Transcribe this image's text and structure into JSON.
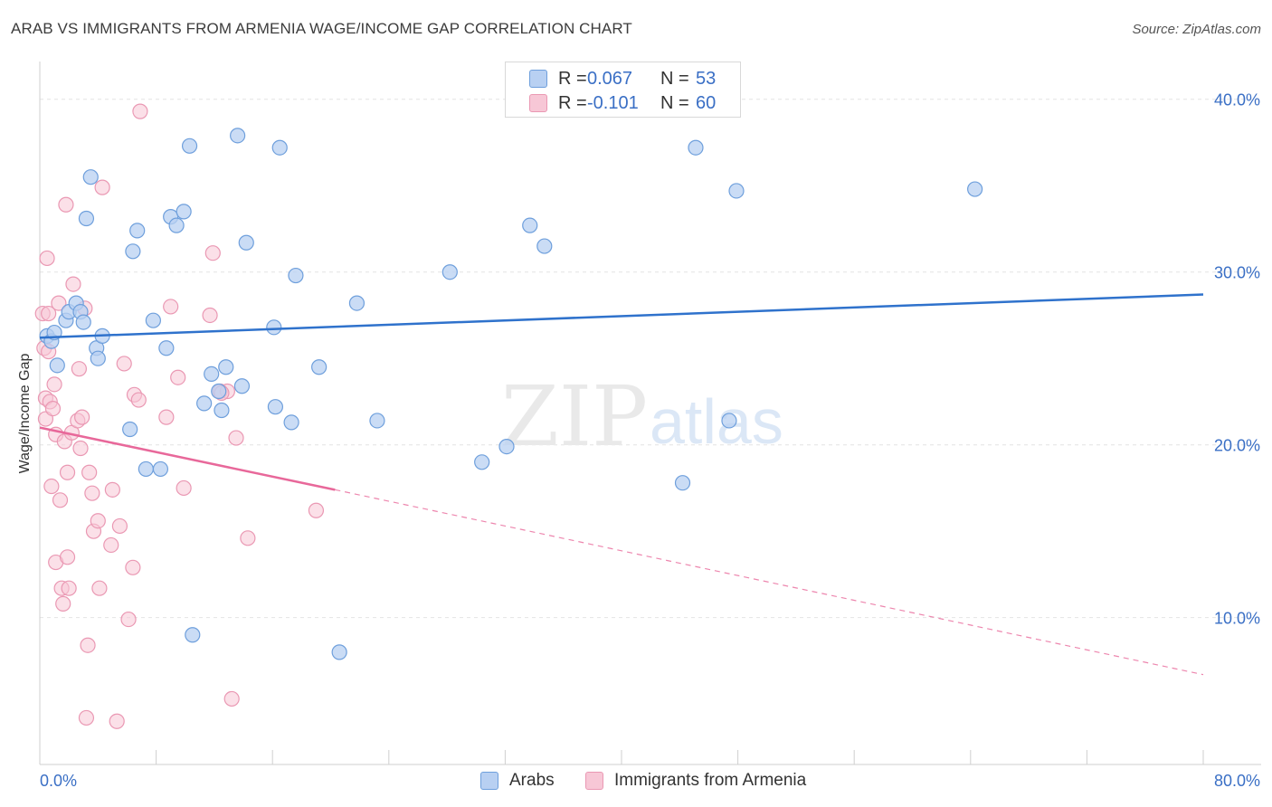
{
  "chart_data": {
    "type": "scatter",
    "title": "ARAB VS IMMIGRANTS FROM ARMENIA WAGE/INCOME GAP CORRELATION CHART",
    "source": "Source: ZipAtlas.com",
    "xlabel": "",
    "ylabel": "Wage/Income Gap",
    "xlim": [
      0,
      80
    ],
    "ylim": [
      1.5,
      42.5
    ],
    "x_tick_labels": {
      "left": "0.0%",
      "right": "80.0%"
    },
    "y_ticks": [
      {
        "value": 10,
        "label": "10.0%"
      },
      {
        "value": 20,
        "label": "20.0%"
      },
      {
        "value": 30,
        "label": "30.0%"
      },
      {
        "value": 40,
        "label": "40.0%"
      }
    ],
    "watermark": {
      "zip": "ZIP",
      "atlas": "atlas"
    },
    "legend": {
      "r_label": "R =",
      "n_label": "N =",
      "entries": [
        {
          "name": "Arabs",
          "r": "0.067",
          "n": "53"
        },
        {
          "name": "Immigrants from Armenia",
          "r": "-0.101",
          "n": "60"
        }
      ]
    },
    "colors": {
      "arabs_fill": "#b8d0f2",
      "arabs_stroke": "#6e9fdc",
      "arabs_line": "#2f72cc",
      "armenia_fill": "#f7c7d6",
      "armenia_stroke": "#ea98b3",
      "armenia_line": "#e8689a",
      "axis_text": "#3a6fc5"
    },
    "series": [
      {
        "name": "Arabs",
        "trend": {
          "x": [
            0,
            80
          ],
          "y": [
            26.2,
            28.7
          ]
        },
        "points": [
          [
            0.5,
            26.3
          ],
          [
            0.8,
            26.0
          ],
          [
            1.0,
            26.5
          ],
          [
            1.2,
            24.6
          ],
          [
            1.8,
            27.2
          ],
          [
            2.0,
            27.7
          ],
          [
            2.5,
            28.2
          ],
          [
            2.8,
            27.7
          ],
          [
            3.0,
            27.1
          ],
          [
            3.2,
            33.1
          ],
          [
            3.5,
            35.5
          ],
          [
            3.9,
            25.6
          ],
          [
            4.0,
            25.0
          ],
          [
            4.3,
            26.3
          ],
          [
            6.2,
            20.9
          ],
          [
            6.4,
            31.2
          ],
          [
            6.7,
            32.4
          ],
          [
            7.3,
            18.6
          ],
          [
            7.8,
            27.2
          ],
          [
            8.3,
            18.6
          ],
          [
            8.7,
            25.6
          ],
          [
            9.0,
            33.2
          ],
          [
            9.4,
            32.7
          ],
          [
            9.9,
            33.5
          ],
          [
            10.3,
            37.3
          ],
          [
            10.5,
            9.0
          ],
          [
            11.3,
            22.4
          ],
          [
            11.8,
            24.1
          ],
          [
            12.3,
            23.1
          ],
          [
            12.5,
            22.0
          ],
          [
            12.8,
            24.5
          ],
          [
            13.6,
            37.9
          ],
          [
            13.9,
            23.4
          ],
          [
            14.2,
            31.7
          ],
          [
            16.1,
            26.8
          ],
          [
            16.2,
            22.2
          ],
          [
            16.5,
            37.2
          ],
          [
            17.3,
            21.3
          ],
          [
            17.6,
            29.8
          ],
          [
            19.2,
            24.5
          ],
          [
            20.6,
            8.0
          ],
          [
            21.8,
            28.2
          ],
          [
            23.2,
            21.4
          ],
          [
            28.2,
            30.0
          ],
          [
            30.4,
            19.0
          ],
          [
            32.1,
            19.9
          ],
          [
            33.7,
            32.7
          ],
          [
            34.7,
            31.5
          ],
          [
            44.2,
            17.8
          ],
          [
            45.1,
            37.2
          ],
          [
            47.4,
            21.4
          ],
          [
            47.9,
            34.7
          ],
          [
            64.3,
            34.8
          ]
        ]
      },
      {
        "name": "Immigrants from Armenia",
        "trend": {
          "x": [
            0,
            20.3
          ],
          "y": [
            21.0,
            17.4
          ]
        },
        "trend_dashed": {
          "x": [
            20.3,
            80
          ],
          "y": [
            17.4,
            6.7
          ]
        },
        "points": [
          [
            0.2,
            27.6
          ],
          [
            0.3,
            25.6
          ],
          [
            0.4,
            21.5
          ],
          [
            0.4,
            22.7
          ],
          [
            0.5,
            30.8
          ],
          [
            0.6,
            27.6
          ],
          [
            0.6,
            25.4
          ],
          [
            0.7,
            22.5
          ],
          [
            0.8,
            17.6
          ],
          [
            0.9,
            22.1
          ],
          [
            1.0,
            23.5
          ],
          [
            1.1,
            13.2
          ],
          [
            1.1,
            20.6
          ],
          [
            1.3,
            28.2
          ],
          [
            1.4,
            16.8
          ],
          [
            1.5,
            11.7
          ],
          [
            1.6,
            10.8
          ],
          [
            1.7,
            20.2
          ],
          [
            1.8,
            33.9
          ],
          [
            1.9,
            13.5
          ],
          [
            1.9,
            18.4
          ],
          [
            2.0,
            11.7
          ],
          [
            2.2,
            20.7
          ],
          [
            2.3,
            29.3
          ],
          [
            2.6,
            21.4
          ],
          [
            2.7,
            24.4
          ],
          [
            2.8,
            19.8
          ],
          [
            2.9,
            21.6
          ],
          [
            3.1,
            27.9
          ],
          [
            3.2,
            4.2
          ],
          [
            3.3,
            8.4
          ],
          [
            3.4,
            18.4
          ],
          [
            3.6,
            17.2
          ],
          [
            3.7,
            15.0
          ],
          [
            4.0,
            15.6
          ],
          [
            4.1,
            11.7
          ],
          [
            4.3,
            34.9
          ],
          [
            4.9,
            14.2
          ],
          [
            5.0,
            17.4
          ],
          [
            5.3,
            4.0
          ],
          [
            5.5,
            15.3
          ],
          [
            5.8,
            24.7
          ],
          [
            6.1,
            9.9
          ],
          [
            6.4,
            12.9
          ],
          [
            6.5,
            22.9
          ],
          [
            6.8,
            22.6
          ],
          [
            6.9,
            39.3
          ],
          [
            8.7,
            21.6
          ],
          [
            9.0,
            28.0
          ],
          [
            9.5,
            23.9
          ],
          [
            9.9,
            17.5
          ],
          [
            11.7,
            27.5
          ],
          [
            11.9,
            31.1
          ],
          [
            12.4,
            23.1
          ],
          [
            12.9,
            23.1
          ],
          [
            13.2,
            5.3
          ],
          [
            13.5,
            20.4
          ],
          [
            14.3,
            14.6
          ],
          [
            19.0,
            16.2
          ],
          [
            12.5,
            23.0
          ]
        ]
      }
    ]
  }
}
